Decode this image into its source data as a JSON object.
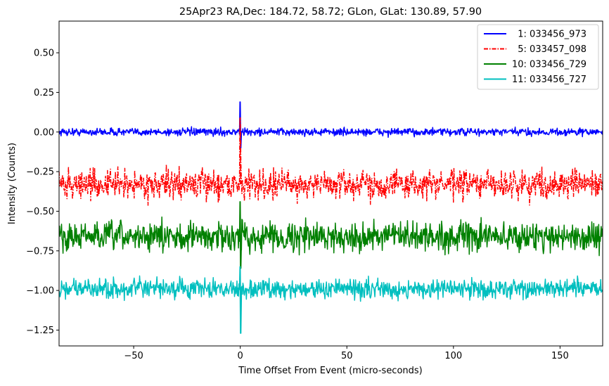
{
  "chart_data": {
    "type": "line",
    "title": "25Apr23 RA,Dec:  184.72,  58.72; GLon, GLat:  130.89,  57.90",
    "xlabel": "Time Offset From Event (micro-seconds)",
    "ylabel": "Intensity (Counts)",
    "xlim": [
      -85,
      170
    ],
    "ylim": [
      -1.35,
      0.7
    ],
    "xticks": [
      -50,
      0,
      50,
      100,
      150
    ],
    "xtick_labels": [
      "−50",
      "0",
      "50",
      "100",
      "150"
    ],
    "yticks": [
      0.5,
      0.25,
      0.0,
      -0.25,
      -0.5,
      -0.75,
      -1.0,
      -1.25
    ],
    "ytick_labels": [
      "0.50",
      "0.25",
      "0.00",
      "−0.25",
      "−0.50",
      "−0.75",
      "−1.00",
      "−1.25"
    ],
    "grid": false,
    "legend_position": "top-right",
    "series": [
      {
        "name": "  1: 033456_973",
        "legend": "  1: 033456_973",
        "color": "#0000ff",
        "style": "solid",
        "offset": 0.0,
        "noise": 0.012,
        "spike_peak": 0.19,
        "spike_trough": -0.1
      },
      {
        "name": "  5: 033457_098",
        "legend": "  5: 033457_098",
        "color": "#ff0000",
        "style": "dashdot",
        "offset": -0.33,
        "noise": 0.045,
        "spike_peak": 0.09,
        "spike_trough": -0.2
      },
      {
        "name": "10: 033456_729",
        "legend": "10: 033456_729",
        "color": "#008000",
        "style": "solid",
        "offset": -0.66,
        "noise": 0.045,
        "spike_peak": -0.44,
        "spike_trough": -0.86
      },
      {
        "name": "11: 033456_727",
        "legend": "11: 033456_727",
        "color": "#00bfbf",
        "style": "solid",
        "offset": -0.99,
        "noise": 0.03,
        "spike_peak": -0.85,
        "spike_trough": -1.27
      }
    ]
  }
}
